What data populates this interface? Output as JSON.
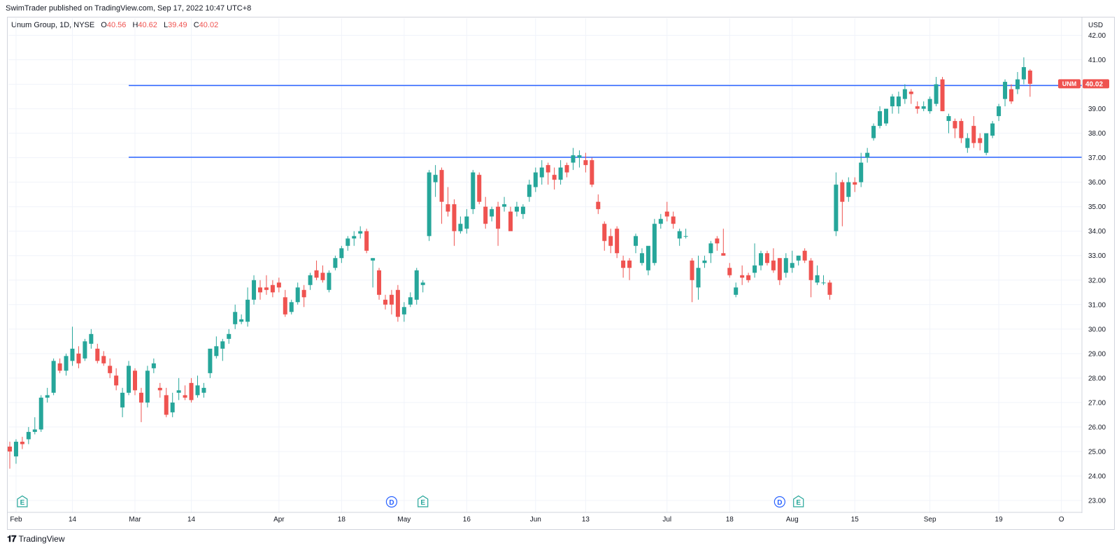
{
  "header": {
    "publish_line": "SwimTrader published on TradingView.com, Sep 17, 2022 10:47 UTC+8"
  },
  "legend": {
    "symbol": "Unum Group, 1D, NYSE",
    "o_label": "O",
    "o_value": "40.56",
    "h_label": "H",
    "h_value": "40.62",
    "l_label": "L",
    "l_value": "39.49",
    "c_label": "C",
    "c_value": "40.02"
  },
  "price_axis": {
    "currency": "USD",
    "last_price_label": "40.02",
    "ticker_badge": "UNM"
  },
  "footer": {
    "brand": "TradingView"
  },
  "colors": {
    "up": "#26a69a",
    "down": "#ef5350",
    "hline": "#2962ff",
    "grid": "#f0f3fa",
    "axis_text": "#131722",
    "badge": "#ef5350"
  },
  "chart_data": {
    "type": "candlestick",
    "title": "Unum Group, 1D, NYSE",
    "ylabel": "USD",
    "ylim": [
      22.6,
      42.7
    ],
    "y_ticks": [
      "23.00",
      "24.00",
      "25.00",
      "26.00",
      "27.00",
      "28.00",
      "29.00",
      "30.00",
      "31.00",
      "32.00",
      "33.00",
      "34.00",
      "35.00",
      "36.00",
      "37.00",
      "38.00",
      "39.00",
      "40.00",
      "41.00",
      "42.00"
    ],
    "x_ticks": [
      {
        "label": "Feb",
        "index": 1
      },
      {
        "label": "14",
        "index": 10
      },
      {
        "label": "Mar",
        "index": 20
      },
      {
        "label": "14",
        "index": 29
      },
      {
        "label": "Apr",
        "index": 43
      },
      {
        "label": "18",
        "index": 53
      },
      {
        "label": "May",
        "index": 63
      },
      {
        "label": "16",
        "index": 73
      },
      {
        "label": "Jun",
        "index": 84
      },
      {
        "label": "13",
        "index": 92
      },
      {
        "label": "Jul",
        "index": 105
      },
      {
        "label": "18",
        "index": 115
      },
      {
        "label": "Aug",
        "index": 125
      },
      {
        "label": "15",
        "index": 135
      },
      {
        "label": "Sep",
        "index": 147
      },
      {
        "label": "19",
        "index": 158
      },
      {
        "label": "O",
        "index": 168
      }
    ],
    "horizontal_lines": [
      39.95,
      37.02
    ],
    "hline_start_index": 19,
    "events": [
      {
        "label": "E",
        "index": 2,
        "kind": "earnings"
      },
      {
        "label": "D",
        "index": 61,
        "kind": "dividend"
      },
      {
        "label": "E",
        "index": 66,
        "kind": "earnings"
      },
      {
        "label": "D",
        "index": 123,
        "kind": "dividend"
      },
      {
        "label": "E",
        "index": 126,
        "kind": "earnings"
      }
    ],
    "last_price": 40.02,
    "candles": [
      {
        "o": 25.2,
        "h": 25.4,
        "l": 24.3,
        "c": 25.0
      },
      {
        "o": 24.8,
        "h": 25.5,
        "l": 24.5,
        "c": 25.4
      },
      {
        "o": 25.4,
        "h": 25.6,
        "l": 25.1,
        "c": 25.3
      },
      {
        "o": 25.5,
        "h": 26.0,
        "l": 25.3,
        "c": 25.8
      },
      {
        "o": 25.8,
        "h": 26.4,
        "l": 25.7,
        "c": 25.9
      },
      {
        "o": 25.9,
        "h": 27.3,
        "l": 25.8,
        "c": 27.2
      },
      {
        "o": 27.2,
        "h": 27.6,
        "l": 27.0,
        "c": 27.3
      },
      {
        "o": 27.4,
        "h": 28.8,
        "l": 27.3,
        "c": 28.7
      },
      {
        "o": 28.6,
        "h": 28.8,
        "l": 28.2,
        "c": 28.3
      },
      {
        "o": 28.3,
        "h": 29.0,
        "l": 28.1,
        "c": 28.9
      },
      {
        "o": 28.7,
        "h": 30.1,
        "l": 28.5,
        "c": 29.2
      },
      {
        "o": 29.0,
        "h": 29.3,
        "l": 28.4,
        "c": 28.6
      },
      {
        "o": 28.8,
        "h": 29.6,
        "l": 28.7,
        "c": 29.5
      },
      {
        "o": 29.4,
        "h": 30.0,
        "l": 29.2,
        "c": 29.8
      },
      {
        "o": 29.2,
        "h": 29.4,
        "l": 28.6,
        "c": 28.7
      },
      {
        "o": 28.9,
        "h": 29.1,
        "l": 28.5,
        "c": 28.6
      },
      {
        "o": 28.5,
        "h": 28.8,
        "l": 28.0,
        "c": 28.2
      },
      {
        "o": 28.1,
        "h": 28.4,
        "l": 27.5,
        "c": 27.7
      },
      {
        "o": 26.8,
        "h": 27.6,
        "l": 26.4,
        "c": 27.4
      },
      {
        "o": 27.4,
        "h": 28.7,
        "l": 27.3,
        "c": 28.5
      },
      {
        "o": 28.3,
        "h": 28.4,
        "l": 27.3,
        "c": 27.5
      },
      {
        "o": 27.4,
        "h": 27.6,
        "l": 26.2,
        "c": 27.0
      },
      {
        "o": 27.0,
        "h": 28.5,
        "l": 26.8,
        "c": 28.3
      },
      {
        "o": 28.4,
        "h": 28.8,
        "l": 28.2,
        "c": 28.6
      },
      {
        "o": 27.6,
        "h": 27.8,
        "l": 27.2,
        "c": 27.5
      },
      {
        "o": 27.3,
        "h": 27.6,
        "l": 26.4,
        "c": 26.5
      },
      {
        "o": 26.6,
        "h": 27.4,
        "l": 26.4,
        "c": 27.0
      },
      {
        "o": 27.4,
        "h": 28.0,
        "l": 27.1,
        "c": 27.5
      },
      {
        "o": 27.3,
        "h": 27.7,
        "l": 27.1,
        "c": 27.2
      },
      {
        "o": 27.8,
        "h": 28.0,
        "l": 27.0,
        "c": 27.1
      },
      {
        "o": 27.3,
        "h": 28.1,
        "l": 27.2,
        "c": 27.7
      },
      {
        "o": 27.4,
        "h": 27.8,
        "l": 27.2,
        "c": 27.6
      },
      {
        "o": 28.2,
        "h": 29.0,
        "l": 28.0,
        "c": 29.2
      },
      {
        "o": 28.9,
        "h": 29.7,
        "l": 28.8,
        "c": 29.3
      },
      {
        "o": 29.2,
        "h": 29.6,
        "l": 28.7,
        "c": 29.5
      },
      {
        "o": 29.6,
        "h": 30.0,
        "l": 29.4,
        "c": 29.8
      },
      {
        "o": 30.2,
        "h": 31.0,
        "l": 30.0,
        "c": 30.7
      },
      {
        "o": 30.3,
        "h": 30.6,
        "l": 30.2,
        "c": 30.4
      },
      {
        "o": 30.3,
        "h": 31.7,
        "l": 30.1,
        "c": 31.2
      },
      {
        "o": 31.2,
        "h": 32.2,
        "l": 31.0,
        "c": 32.0
      },
      {
        "o": 31.7,
        "h": 32.0,
        "l": 31.2,
        "c": 31.5
      },
      {
        "o": 31.7,
        "h": 32.2,
        "l": 31.4,
        "c": 31.6
      },
      {
        "o": 31.8,
        "h": 32.0,
        "l": 31.3,
        "c": 31.5
      },
      {
        "o": 31.9,
        "h": 32.1,
        "l": 31.5,
        "c": 31.7
      },
      {
        "o": 31.3,
        "h": 31.6,
        "l": 30.5,
        "c": 30.6
      },
      {
        "o": 30.7,
        "h": 31.2,
        "l": 30.6,
        "c": 31.1
      },
      {
        "o": 31.1,
        "h": 31.9,
        "l": 31.0,
        "c": 31.7
      },
      {
        "o": 31.6,
        "h": 31.8,
        "l": 30.9,
        "c": 31.3
      },
      {
        "o": 31.8,
        "h": 32.3,
        "l": 31.6,
        "c": 32.2
      },
      {
        "o": 32.4,
        "h": 32.8,
        "l": 32.0,
        "c": 32.1
      },
      {
        "o": 32.3,
        "h": 32.6,
        "l": 31.9,
        "c": 32.0
      },
      {
        "o": 31.6,
        "h": 32.4,
        "l": 31.5,
        "c": 32.3
      },
      {
        "o": 32.5,
        "h": 33.0,
        "l": 32.4,
        "c": 32.9
      },
      {
        "o": 32.9,
        "h": 33.4,
        "l": 32.7,
        "c": 33.3
      },
      {
        "o": 33.4,
        "h": 33.8,
        "l": 33.2,
        "c": 33.7
      },
      {
        "o": 33.7,
        "h": 34.0,
        "l": 33.4,
        "c": 33.8
      },
      {
        "o": 33.9,
        "h": 34.2,
        "l": 33.7,
        "c": 34.0
      },
      {
        "o": 34.0,
        "h": 34.1,
        "l": 33.1,
        "c": 33.2
      },
      {
        "o": 32.8,
        "h": 32.9,
        "l": 31.7,
        "c": 32.9
      },
      {
        "o": 32.4,
        "h": 32.5,
        "l": 31.2,
        "c": 31.4
      },
      {
        "o": 31.2,
        "h": 31.4,
        "l": 30.8,
        "c": 31.0
      },
      {
        "o": 31.4,
        "h": 31.6,
        "l": 30.6,
        "c": 31.0
      },
      {
        "o": 31.6,
        "h": 31.8,
        "l": 30.3,
        "c": 30.5
      },
      {
        "o": 30.6,
        "h": 31.1,
        "l": 30.3,
        "c": 30.9
      },
      {
        "o": 31.0,
        "h": 31.5,
        "l": 30.9,
        "c": 31.3
      },
      {
        "o": 31.2,
        "h": 32.5,
        "l": 31.0,
        "c": 32.4
      },
      {
        "o": 31.8,
        "h": 32.0,
        "l": 31.5,
        "c": 31.9
      },
      {
        "o": 33.8,
        "h": 36.5,
        "l": 33.6,
        "c": 36.4
      },
      {
        "o": 36.0,
        "h": 36.7,
        "l": 35.4,
        "c": 36.3
      },
      {
        "o": 36.5,
        "h": 36.6,
        "l": 34.3,
        "c": 35.2
      },
      {
        "o": 35.1,
        "h": 35.8,
        "l": 34.6,
        "c": 34.8
      },
      {
        "o": 35.1,
        "h": 35.3,
        "l": 33.4,
        "c": 34.0
      },
      {
        "o": 34.0,
        "h": 34.6,
        "l": 33.9,
        "c": 34.3
      },
      {
        "o": 34.1,
        "h": 34.9,
        "l": 33.9,
        "c": 34.6
      },
      {
        "o": 34.9,
        "h": 36.5,
        "l": 34.7,
        "c": 36.4
      },
      {
        "o": 36.3,
        "h": 36.4,
        "l": 35.1,
        "c": 35.2
      },
      {
        "o": 35.0,
        "h": 35.4,
        "l": 34.1,
        "c": 34.3
      },
      {
        "o": 34.6,
        "h": 35.0,
        "l": 34.4,
        "c": 34.9
      },
      {
        "o": 35.0,
        "h": 35.2,
        "l": 33.4,
        "c": 34.1
      },
      {
        "o": 35.0,
        "h": 35.4,
        "l": 34.8,
        "c": 35.1
      },
      {
        "o": 34.8,
        "h": 35.0,
        "l": 34.2,
        "c": 34.0
      },
      {
        "o": 34.8,
        "h": 35.2,
        "l": 34.6,
        "c": 35.0
      },
      {
        "o": 34.7,
        "h": 35.1,
        "l": 34.5,
        "c": 35.0
      },
      {
        "o": 35.4,
        "h": 36.1,
        "l": 35.2,
        "c": 35.9
      },
      {
        "o": 35.8,
        "h": 36.6,
        "l": 35.6,
        "c": 36.4
      },
      {
        "o": 36.2,
        "h": 36.9,
        "l": 35.9,
        "c": 36.6
      },
      {
        "o": 36.7,
        "h": 36.8,
        "l": 35.9,
        "c": 36.4
      },
      {
        "o": 36.3,
        "h": 36.6,
        "l": 35.7,
        "c": 36.1
      },
      {
        "o": 36.1,
        "h": 36.9,
        "l": 35.9,
        "c": 36.6
      },
      {
        "o": 36.7,
        "h": 36.8,
        "l": 36.2,
        "c": 36.4
      },
      {
        "o": 36.8,
        "h": 37.4,
        "l": 36.5,
        "c": 37.1
      },
      {
        "o": 37.0,
        "h": 37.3,
        "l": 36.6,
        "c": 37.1
      },
      {
        "o": 36.9,
        "h": 37.2,
        "l": 36.4,
        "c": 36.7
      },
      {
        "o": 36.9,
        "h": 37.0,
        "l": 35.8,
        "c": 35.9
      },
      {
        "o": 35.2,
        "h": 35.5,
        "l": 34.7,
        "c": 34.9
      },
      {
        "o": 34.3,
        "h": 34.4,
        "l": 33.2,
        "c": 33.6
      },
      {
        "o": 33.8,
        "h": 34.1,
        "l": 33.1,
        "c": 33.4
      },
      {
        "o": 34.1,
        "h": 34.2,
        "l": 32.9,
        "c": 33.1
      },
      {
        "o": 32.8,
        "h": 33.0,
        "l": 32.1,
        "c": 32.5
      },
      {
        "o": 32.8,
        "h": 32.9,
        "l": 32.0,
        "c": 32.5
      },
      {
        "o": 33.4,
        "h": 33.9,
        "l": 33.1,
        "c": 33.8
      },
      {
        "o": 32.7,
        "h": 33.3,
        "l": 32.6,
        "c": 33.1
      },
      {
        "o": 32.4,
        "h": 33.2,
        "l": 32.2,
        "c": 33.4
      },
      {
        "o": 32.7,
        "h": 34.5,
        "l": 32.6,
        "c": 34.3
      },
      {
        "o": 34.3,
        "h": 34.7,
        "l": 34.1,
        "c": 34.5
      },
      {
        "o": 34.8,
        "h": 35.2,
        "l": 34.4,
        "c": 34.6
      },
      {
        "o": 34.6,
        "h": 34.8,
        "l": 34.1,
        "c": 34.3
      },
      {
        "o": 33.7,
        "h": 34.1,
        "l": 33.4,
        "c": 34.0
      },
      {
        "o": 33.8,
        "h": 34.1,
        "l": 33.7,
        "c": 33.8
      },
      {
        "o": 32.8,
        "h": 32.9,
        "l": 31.1,
        "c": 32.0
      },
      {
        "o": 31.7,
        "h": 33.0,
        "l": 31.2,
        "c": 32.5
      },
      {
        "o": 32.7,
        "h": 33.0,
        "l": 32.5,
        "c": 32.8
      },
      {
        "o": 33.1,
        "h": 33.6,
        "l": 32.7,
        "c": 33.5
      },
      {
        "o": 33.7,
        "h": 33.8,
        "l": 33.2,
        "c": 33.5
      },
      {
        "o": 33.1,
        "h": 34.1,
        "l": 33.0,
        "c": 33.0
      },
      {
        "o": 32.5,
        "h": 32.7,
        "l": 32.1,
        "c": 32.2
      },
      {
        "o": 31.4,
        "h": 31.9,
        "l": 31.3,
        "c": 31.7
      },
      {
        "o": 32.2,
        "h": 32.6,
        "l": 31.8,
        "c": 32.1
      },
      {
        "o": 32.2,
        "h": 32.3,
        "l": 31.9,
        "c": 32.0
      },
      {
        "o": 32.3,
        "h": 33.5,
        "l": 32.1,
        "c": 32.6
      },
      {
        "o": 32.6,
        "h": 33.2,
        "l": 32.4,
        "c": 33.1
      },
      {
        "o": 33.1,
        "h": 33.2,
        "l": 32.6,
        "c": 32.7
      },
      {
        "o": 32.8,
        "h": 33.3,
        "l": 32.3,
        "c": 32.4
      },
      {
        "o": 32.9,
        "h": 32.9,
        "l": 31.8,
        "c": 32.0
      },
      {
        "o": 32.3,
        "h": 33.1,
        "l": 32.1,
        "c": 32.9
      },
      {
        "o": 32.5,
        "h": 33.2,
        "l": 32.3,
        "c": 32.7
      },
      {
        "o": 32.8,
        "h": 33.0,
        "l": 32.6,
        "c": 33.0
      },
      {
        "o": 33.2,
        "h": 33.3,
        "l": 32.7,
        "c": 32.8
      },
      {
        "o": 32.8,
        "h": 32.9,
        "l": 31.3,
        "c": 32.0
      },
      {
        "o": 31.9,
        "h": 32.6,
        "l": 31.8,
        "c": 32.2
      },
      {
        "o": 31.9,
        "h": 32.2,
        "l": 31.8,
        "c": 31.9
      },
      {
        "o": 31.9,
        "h": 32.0,
        "l": 31.2,
        "c": 31.4
      },
      {
        "o": 34.0,
        "h": 36.4,
        "l": 33.8,
        "c": 35.9
      },
      {
        "o": 36.0,
        "h": 36.1,
        "l": 34.2,
        "c": 35.2
      },
      {
        "o": 35.4,
        "h": 36.2,
        "l": 35.2,
        "c": 36.0
      },
      {
        "o": 36.0,
        "h": 36.2,
        "l": 35.6,
        "c": 35.9
      },
      {
        "o": 36.0,
        "h": 37.2,
        "l": 35.8,
        "c": 36.8
      },
      {
        "o": 37.0,
        "h": 37.4,
        "l": 36.8,
        "c": 37.2
      },
      {
        "o": 37.8,
        "h": 38.4,
        "l": 37.7,
        "c": 38.3
      },
      {
        "o": 38.3,
        "h": 39.1,
        "l": 38.2,
        "c": 38.9
      },
      {
        "o": 38.4,
        "h": 39.0,
        "l": 38.3,
        "c": 39.0
      },
      {
        "o": 39.1,
        "h": 39.6,
        "l": 38.8,
        "c": 39.5
      },
      {
        "o": 39.1,
        "h": 39.7,
        "l": 38.8,
        "c": 39.5
      },
      {
        "o": 39.4,
        "h": 40.0,
        "l": 39.2,
        "c": 39.8
      },
      {
        "o": 39.7,
        "h": 39.8,
        "l": 39.2,
        "c": 39.6
      },
      {
        "o": 39.1,
        "h": 39.3,
        "l": 38.8,
        "c": 39.0
      },
      {
        "o": 39.0,
        "h": 39.3,
        "l": 38.9,
        "c": 39.1
      },
      {
        "o": 38.9,
        "h": 39.5,
        "l": 38.8,
        "c": 39.4
      },
      {
        "o": 39.2,
        "h": 40.3,
        "l": 39.1,
        "c": 40.0
      },
      {
        "o": 40.2,
        "h": 40.3,
        "l": 38.9,
        "c": 38.9
      },
      {
        "o": 38.5,
        "h": 38.8,
        "l": 38.0,
        "c": 38.7
      },
      {
        "o": 38.5,
        "h": 38.6,
        "l": 37.8,
        "c": 38.2
      },
      {
        "o": 38.5,
        "h": 38.6,
        "l": 37.6,
        "c": 37.8
      },
      {
        "o": 37.4,
        "h": 38.0,
        "l": 37.2,
        "c": 37.8
      },
      {
        "o": 38.3,
        "h": 38.7,
        "l": 37.4,
        "c": 37.6
      },
      {
        "o": 37.8,
        "h": 38.0,
        "l": 37.3,
        "c": 37.6
      },
      {
        "o": 37.2,
        "h": 37.9,
        "l": 37.1,
        "c": 38.0
      },
      {
        "o": 37.9,
        "h": 38.5,
        "l": 37.8,
        "c": 38.4
      },
      {
        "o": 38.7,
        "h": 39.2,
        "l": 38.5,
        "c": 39.1
      },
      {
        "o": 39.4,
        "h": 40.2,
        "l": 39.1,
        "c": 40.1
      },
      {
        "o": 39.8,
        "h": 40.0,
        "l": 39.2,
        "c": 39.3
      },
      {
        "o": 39.8,
        "h": 40.5,
        "l": 39.6,
        "c": 40.2
      },
      {
        "o": 40.2,
        "h": 41.1,
        "l": 40.0,
        "c": 40.7
      },
      {
        "o": 40.56,
        "h": 40.62,
        "l": 39.49,
        "c": 40.02
      }
    ]
  }
}
